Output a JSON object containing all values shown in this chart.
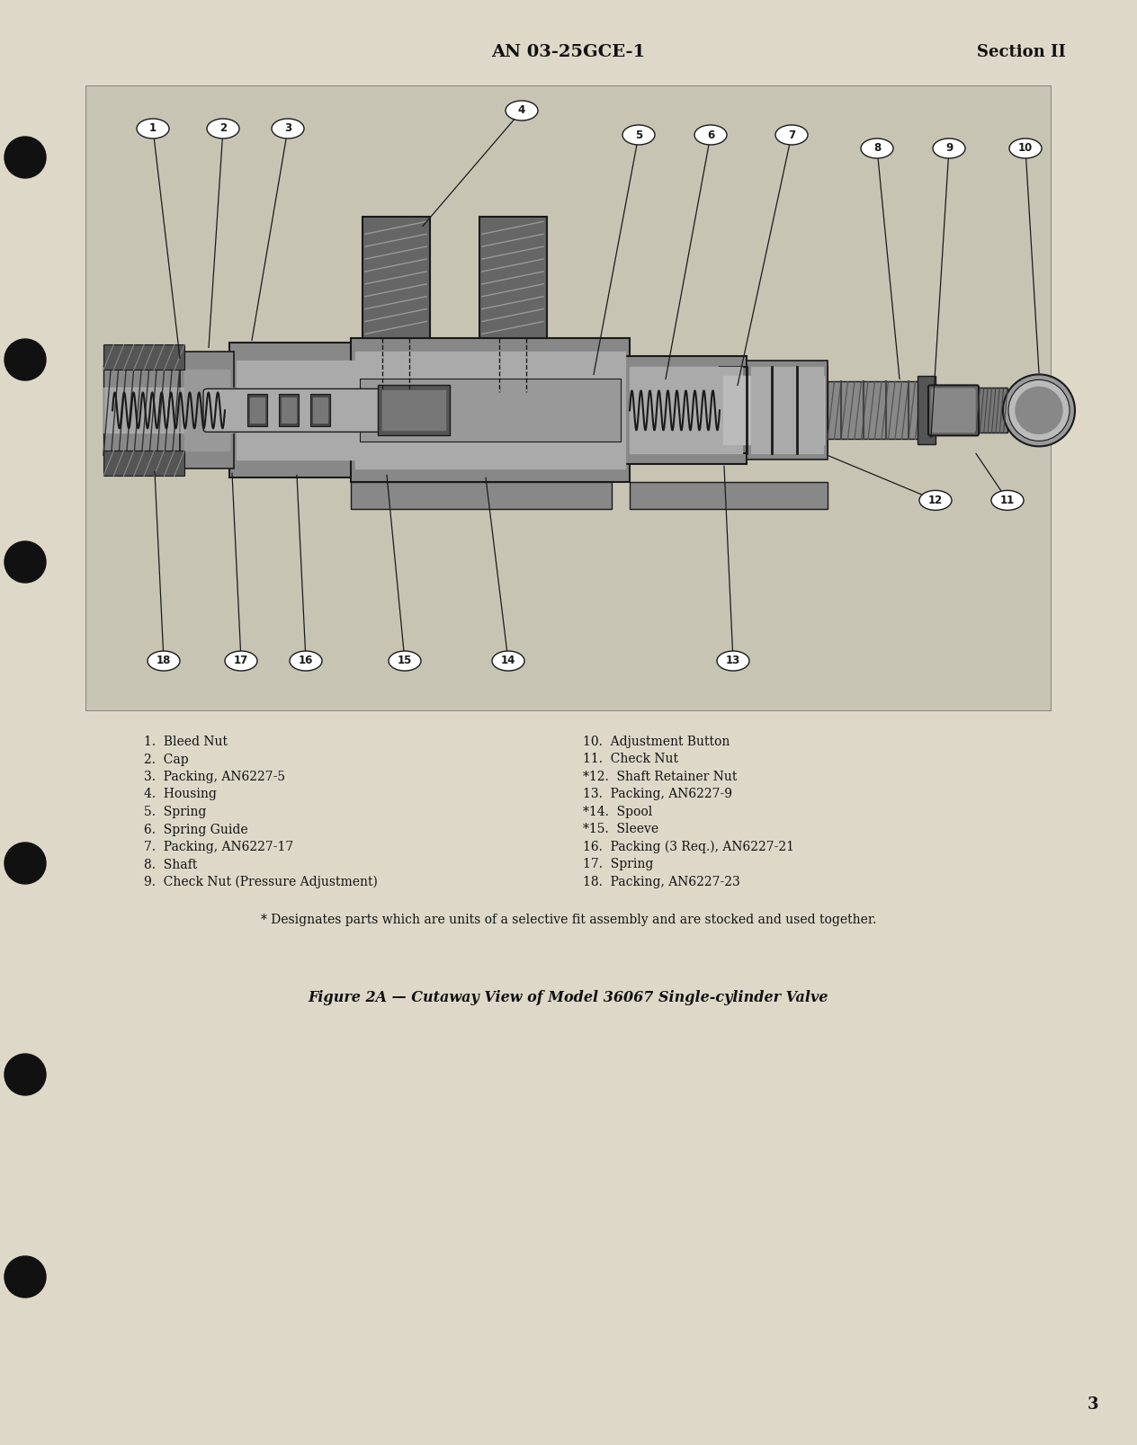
{
  "page_header_center": "AN 03-25GCE-1",
  "page_header_right": "Section II",
  "page_number": "3",
  "figure_caption": "Figure 2A — Cutaway View of Model 36067 Single-cylinder Valve",
  "footnote": "* Designates parts which are units of a selective fit assembly and are stocked and used together.",
  "parts_left": [
    "1.  Bleed Nut",
    "2.  Cap",
    "3.  Packing, AN6227-5",
    "4.  Housing",
    "5.  Spring",
    "6.  Spring Guide",
    "7.  Packing, AN6227-17",
    "8.  Shaft",
    "9.  Check Nut (Pressure Adjustment)"
  ],
  "parts_right": [
    "10.  Adjustment Button",
    "11.  Check Nut",
    "*12.  Shaft Retainer Nut",
    "13.  Packing, AN6227-9",
    "*14.  Spool",
    "*15.  Sleeve",
    "16.  Packing (3 Req.), AN6227-21",
    "17.  Spring",
    "18.  Packing, AN6227-23"
  ],
  "bg_color": "#ddd8c8",
  "diag_bg": "#c8c4b4",
  "text_color": "#111111",
  "header_font_size": 13,
  "body_font_size": 10,
  "caption_font_size": 11.5
}
